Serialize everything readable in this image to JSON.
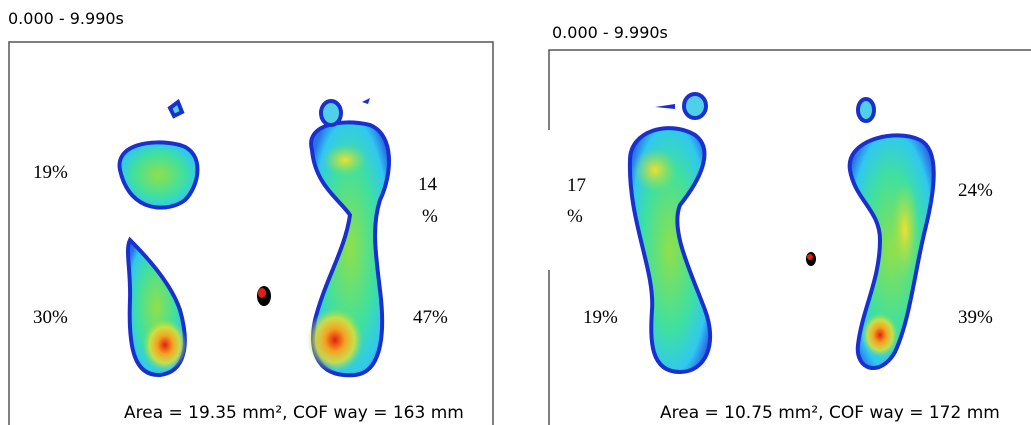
{
  "panels": [
    {
      "time_range": "0.000 - 9.990s",
      "labels": {
        "left_front": "19%",
        "right_front": [
          "14",
          "%"
        ],
        "left_rear": "30%",
        "right_rear": "47%"
      },
      "summary": "Area = 19.35 mm², COF way = 163 mm"
    },
    {
      "time_range": "0.000 - 9.990s",
      "labels": {
        "left_front": [
          "17",
          "%"
        ],
        "right_front": "24%",
        "left_rear": "19%",
        "right_rear": "39%"
      },
      "summary": "Area = 10.75 mm², COF way = 172 mm"
    }
  ]
}
